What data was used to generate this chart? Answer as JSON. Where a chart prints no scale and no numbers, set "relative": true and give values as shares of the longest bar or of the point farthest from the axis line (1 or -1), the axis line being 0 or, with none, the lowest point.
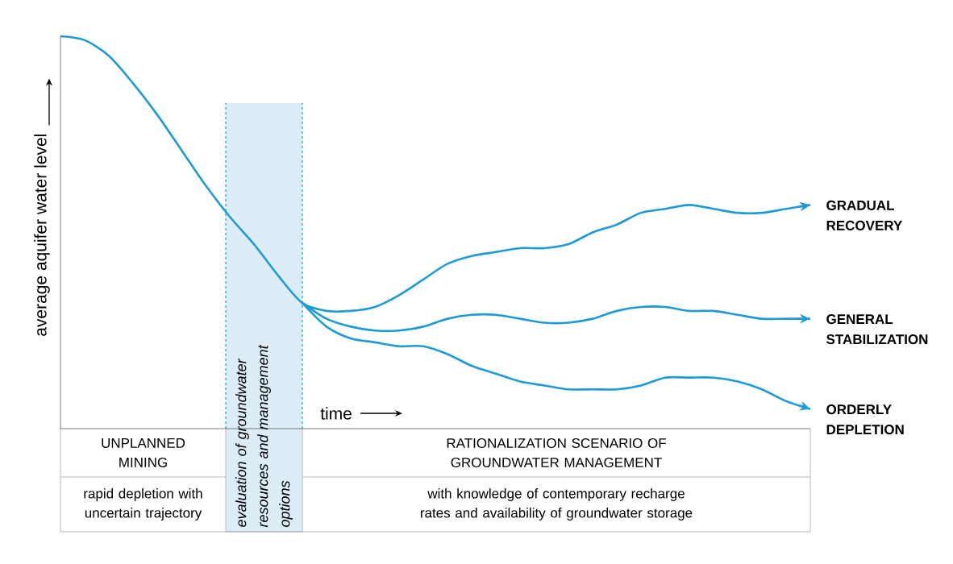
{
  "chart_data": {
    "type": "line",
    "relative": true,
    "ylabel": "average aquifer water level",
    "xlabel": "time",
    "categories": [
      null,
      null,
      null,
      null,
      null,
      null,
      null,
      null,
      null,
      null,
      null,
      null,
      null,
      null,
      null,
      null,
      null,
      null,
      null,
      null,
      null,
      null,
      null,
      null,
      null,
      null,
      null,
      null,
      null,
      null,
      null,
      null
    ],
    "series": [
      {
        "name": "GRADUAL RECOVERY",
        "color": "#1e9bd7",
        "values": [
          1,
          0.99,
          0.95,
          0.88,
          0.8,
          0.71,
          0.62,
          0.54,
          0.47,
          0.39,
          0.32,
          0.3,
          0.3,
          0.31,
          0.34,
          0.38,
          0.42,
          0.44,
          0.45,
          0.46,
          0.46,
          0.47,
          0.5,
          0.52,
          0.55,
          0.56,
          0.57,
          0.56,
          0.55,
          0.55,
          0.56,
          0.57
        ]
      },
      {
        "name": "GENERAL STABILIZATION",
        "color": "#1e9bd7",
        "values": [
          null,
          null,
          null,
          null,
          null,
          null,
          null,
          null,
          null,
          null,
          0.32,
          0.28,
          0.26,
          0.25,
          0.25,
          0.26,
          0.28,
          0.29,
          0.29,
          0.28,
          0.27,
          0.27,
          0.28,
          0.3,
          0.31,
          0.31,
          0.3,
          0.3,
          0.29,
          0.28,
          0.28,
          0.28
        ]
      },
      {
        "name": "ORDERLY DEPLETION",
        "color": "#1e9bd7",
        "values": [
          null,
          null,
          null,
          null,
          null,
          null,
          null,
          null,
          null,
          null,
          0.32,
          0.26,
          0.23,
          0.22,
          0.21,
          0.21,
          0.19,
          0.16,
          0.14,
          0.12,
          0.11,
          0.1,
          0.1,
          0.1,
          0.11,
          0.13,
          0.13,
          0.13,
          0.12,
          0.1,
          0.07,
          0.05
        ]
      }
    ],
    "annotations": [
      "UNPLANNED MINING",
      "rapid depletion with uncertain trajectory",
      "RATIONALIZATION SCENARIO OF GROUNDWATER MANAGEMENT",
      "with knowledge of contemporary recharge rates and availability of groundwater storage",
      "evaluation of groundwater resources and management options"
    ],
    "legend": "right",
    "marker": "none",
    "line_style": "solid"
  }
}
